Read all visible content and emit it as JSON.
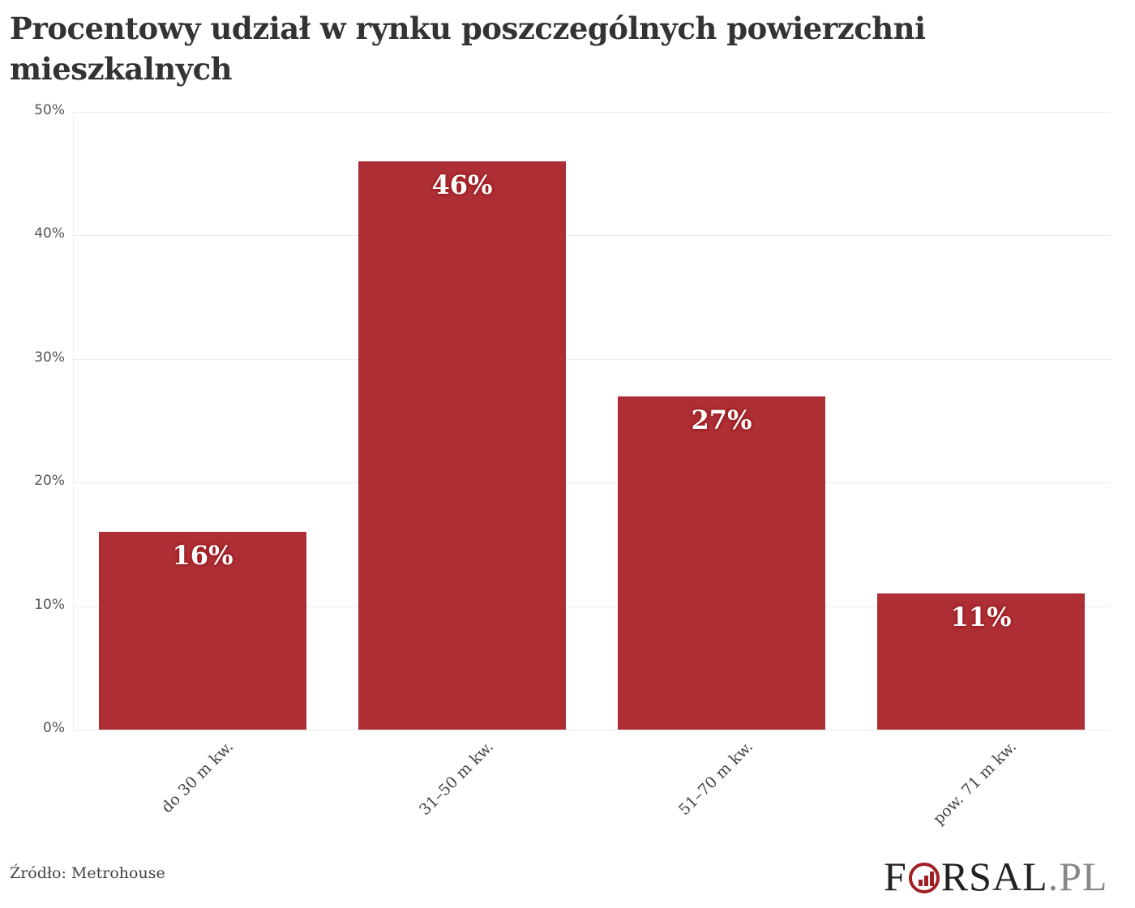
{
  "title": "Procentowy udział w rynku poszczególnych powierzchni mieszkalnych",
  "source": "Źródło: Metrohouse",
  "logo": {
    "prefix": "F",
    "main": "RSAL",
    "suffix": ".PL"
  },
  "colors": {
    "bar": "#ad2f35",
    "label_outline": "#9a1b20",
    "grid": "#ececec"
  },
  "chart_data": {
    "type": "bar",
    "title": "Procentowy udział w rynku poszczególnych powierzchni mieszkalnych",
    "categories": [
      "do 30 m kw.",
      "31–50 m kw.",
      "51–70 m kw.",
      "pow. 71 m kw."
    ],
    "values": [
      16,
      46,
      27,
      11
    ],
    "data_labels": [
      "16%",
      "46%",
      "27%",
      "11%"
    ],
    "xlabel": "",
    "ylabel": "",
    "ylim": [
      0,
      50
    ],
    "yticks": [
      "0%",
      "10%",
      "20%",
      "30%",
      "40%",
      "50%"
    ],
    "grid": true,
    "legend": "none",
    "source": "Źródło: Metrohouse"
  }
}
